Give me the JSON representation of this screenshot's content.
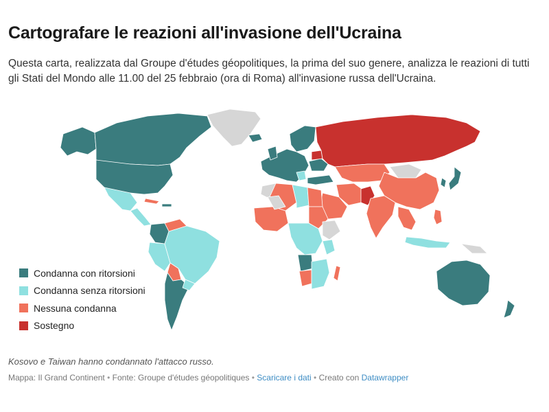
{
  "header": {
    "title": "Cartografare le reazioni all'invasione dell'Ucraina",
    "subtitle": "Questa carta, realizzata dal Groupe d'études géopolitiques, la prima del suo genere, analizza le reazioni di tutti gli Stati del Mondo alle 11.00 del 25 febbraio (ora di Roma) all'invasione russa dell'Ucraina."
  },
  "colors": {
    "condemn_sanctions": "#3a7c7e",
    "condemn_no_sanctions": "#8fe0e0",
    "no_condemnation": "#f0725c",
    "support": "#c8312e",
    "no_data": "#d6d6d6",
    "border": "#ffffff"
  },
  "legend": {
    "items": [
      {
        "label": "Condanna con ritorsioni",
        "color": "#3a7c7e"
      },
      {
        "label": "Condanna senza ritorsioni",
        "color": "#8fe0e0"
      },
      {
        "label": "Nessuna condanna",
        "color": "#f0725c"
      },
      {
        "label": "Sostegno",
        "color": "#c8312e"
      }
    ]
  },
  "note": "Kosovo e Taiwan hanno condannato l'attacco russo.",
  "footer": {
    "map_credit": "Mappa: Il Grand Continent",
    "source": "Fonte: Groupe d'études géopolitiques",
    "download_link": "Scaricare i dati",
    "made_with": "Creato con",
    "datawrapper_link": "Datawrapper",
    "separator": "•"
  }
}
